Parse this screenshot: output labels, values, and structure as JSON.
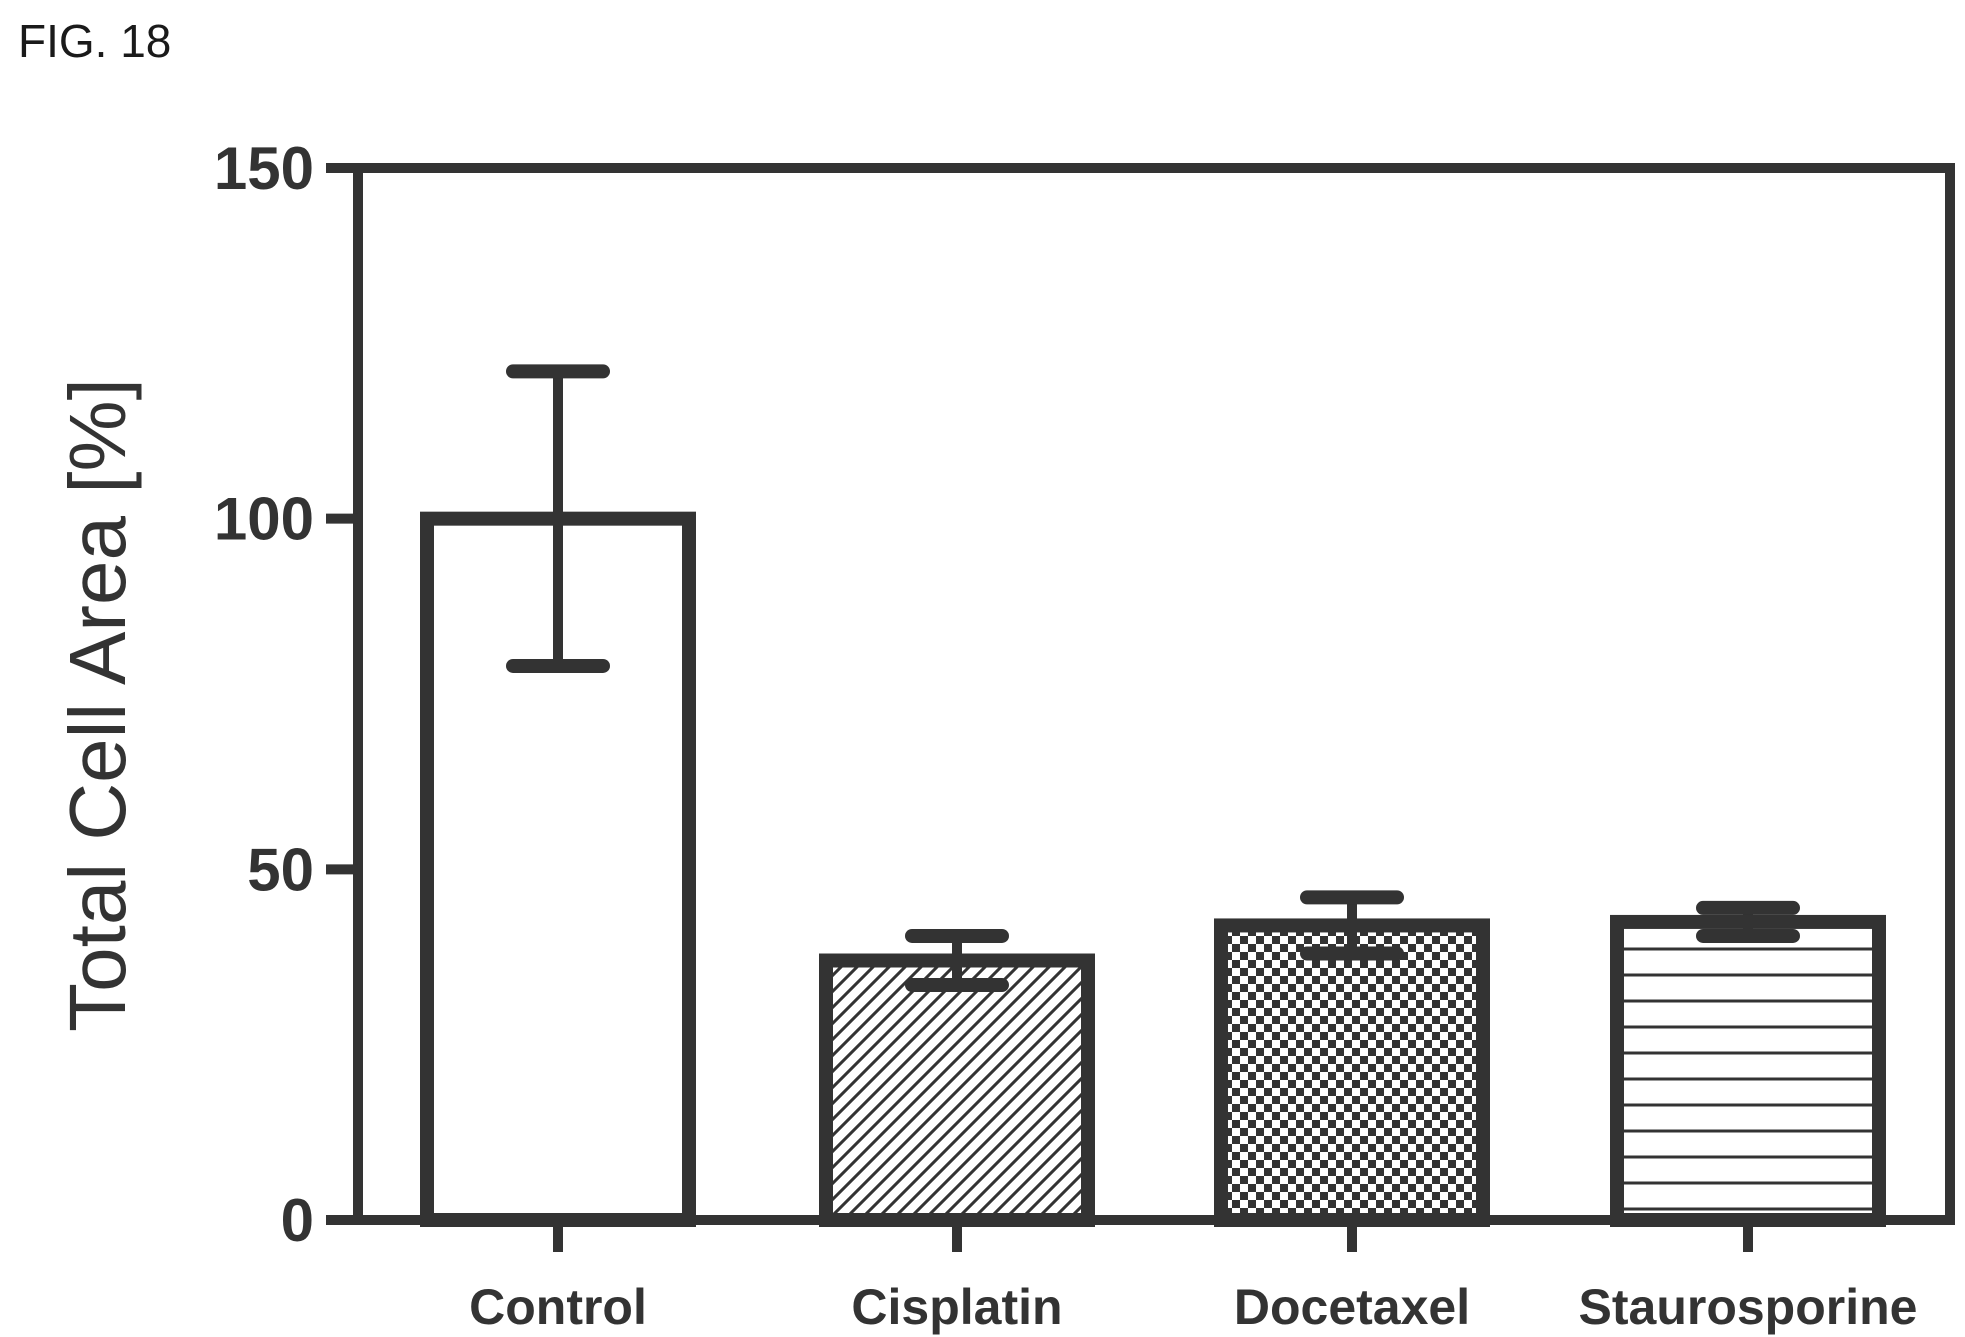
{
  "figure_label": "FIG. 18",
  "chart_data": {
    "type": "bar",
    "title": "",
    "xlabel": "",
    "ylabel": "Total Cell Area [%]",
    "ylim": [
      0,
      150
    ],
    "yticks": [
      0,
      50,
      100,
      150
    ],
    "grid": false,
    "categories": [
      "Control",
      "Cisplatin",
      "Docetaxel",
      "Staurosporine"
    ],
    "values": [
      100,
      37,
      42,
      42.5
    ],
    "errors": [
      21,
      3.5,
      4,
      2
    ],
    "patterns": [
      "none",
      "diagonal-hatch",
      "checkerboard",
      "horizontal-lines"
    ],
    "colors": {
      "ink": "#333333",
      "fill": "#ffffff"
    }
  }
}
